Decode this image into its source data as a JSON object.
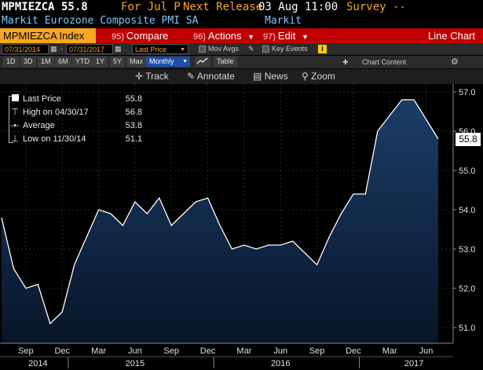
{
  "header": {
    "ticker": "MPMIEZCA",
    "last": "55.8",
    "period_label": "For Jul P",
    "next_release_label": "Next Release",
    "next_release_date": "03 Aug 11:00",
    "survey_label": "Survey --",
    "description": "Markit Eurozone Composite PMI SA",
    "source": "Markit"
  },
  "commands": {
    "security": "MPMIEZCA Index",
    "compare_num": "95)",
    "compare": "Compare",
    "actions_num": "96)",
    "actions": "Actions",
    "edit_num": "97)",
    "edit": "Edit",
    "chart_type": "Line Chart"
  },
  "toolbar": {
    "start_date": "07/31/2014",
    "end_date": "07/31/2017",
    "field": "Last Price",
    "mov_avgs": "Mov Avgs",
    "key_events": "Key Events",
    "periods": [
      "1D",
      "3D",
      "1M",
      "6M",
      "YTD",
      "1Y",
      "5Y",
      "Max"
    ],
    "frequency": "Monthly",
    "table": "Table",
    "chart_content": "Chart Content"
  },
  "tools": {
    "track": "Track",
    "annotate": "Annotate",
    "news": "News",
    "zoom": "Zoom"
  },
  "legend": {
    "last_label": "Last Price",
    "last_value": "55.8",
    "high_label": "High on 04/30/17",
    "high_value": "56.8",
    "avg_label": "Average",
    "avg_value": "53.8",
    "low_label": "Low on 11/30/14",
    "low_value": "51.1"
  },
  "colors": {
    "line": "#ffffff",
    "area_top": "#1c3d68",
    "area_bottom": "#081528",
    "background": "#000000",
    "amber": "#f5a623"
  },
  "chart_data": {
    "type": "area",
    "series": [
      {
        "name": "Last Price",
        "x": [
          "2014-07",
          "2014-08",
          "2014-09",
          "2014-10",
          "2014-11",
          "2014-12",
          "2015-01",
          "2015-02",
          "2015-03",
          "2015-04",
          "2015-05",
          "2015-06",
          "2015-07",
          "2015-08",
          "2015-09",
          "2015-10",
          "2015-11",
          "2015-12",
          "2016-01",
          "2016-02",
          "2016-03",
          "2016-04",
          "2016-05",
          "2016-06",
          "2016-07",
          "2016-08",
          "2016-09",
          "2016-10",
          "2016-11",
          "2016-12",
          "2017-01",
          "2017-02",
          "2017-03",
          "2017-04",
          "2017-05",
          "2017-06",
          "2017-07"
        ],
        "values": [
          53.8,
          52.5,
          52.0,
          52.1,
          51.1,
          51.4,
          52.6,
          53.3,
          54.0,
          53.9,
          53.6,
          54.2,
          53.9,
          54.3,
          53.6,
          53.9,
          54.2,
          54.3,
          53.6,
          53.0,
          53.1,
          53.0,
          53.1,
          53.1,
          53.2,
          52.9,
          52.6,
          53.3,
          53.9,
          54.4,
          54.4,
          56.0,
          56.4,
          56.8,
          56.8,
          56.3,
          55.8
        ]
      }
    ],
    "yticks": [
      51.0,
      52.0,
      53.0,
      54.0,
      55.0,
      56.0,
      57.0
    ],
    "ylim": [
      50.6,
      57.2
    ],
    "xticks": [
      {
        "label": "Sep",
        "x": "2014-09"
      },
      {
        "label": "Dec",
        "x": "2014-12"
      },
      {
        "label": "Mar",
        "x": "2015-03"
      },
      {
        "label": "Jun",
        "x": "2015-06"
      },
      {
        "label": "Sep",
        "x": "2015-09"
      },
      {
        "label": "Dec",
        "x": "2015-12"
      },
      {
        "label": "Mar",
        "x": "2016-03"
      },
      {
        "label": "Jun",
        "x": "2016-06"
      },
      {
        "label": "Sep",
        "x": "2016-09"
      },
      {
        "label": "Dec",
        "x": "2016-12"
      },
      {
        "label": "Mar",
        "x": "2017-03"
      },
      {
        "label": "Jun",
        "x": "2017-06"
      }
    ],
    "years": [
      {
        "label": "2014",
        "x": "2014-10"
      },
      {
        "label": "2015",
        "x": "2015-06"
      },
      {
        "label": "2016",
        "x": "2016-06"
      },
      {
        "label": "2017",
        "x": "2017-05"
      }
    ],
    "grid": true,
    "legend_position": "top-left"
  }
}
